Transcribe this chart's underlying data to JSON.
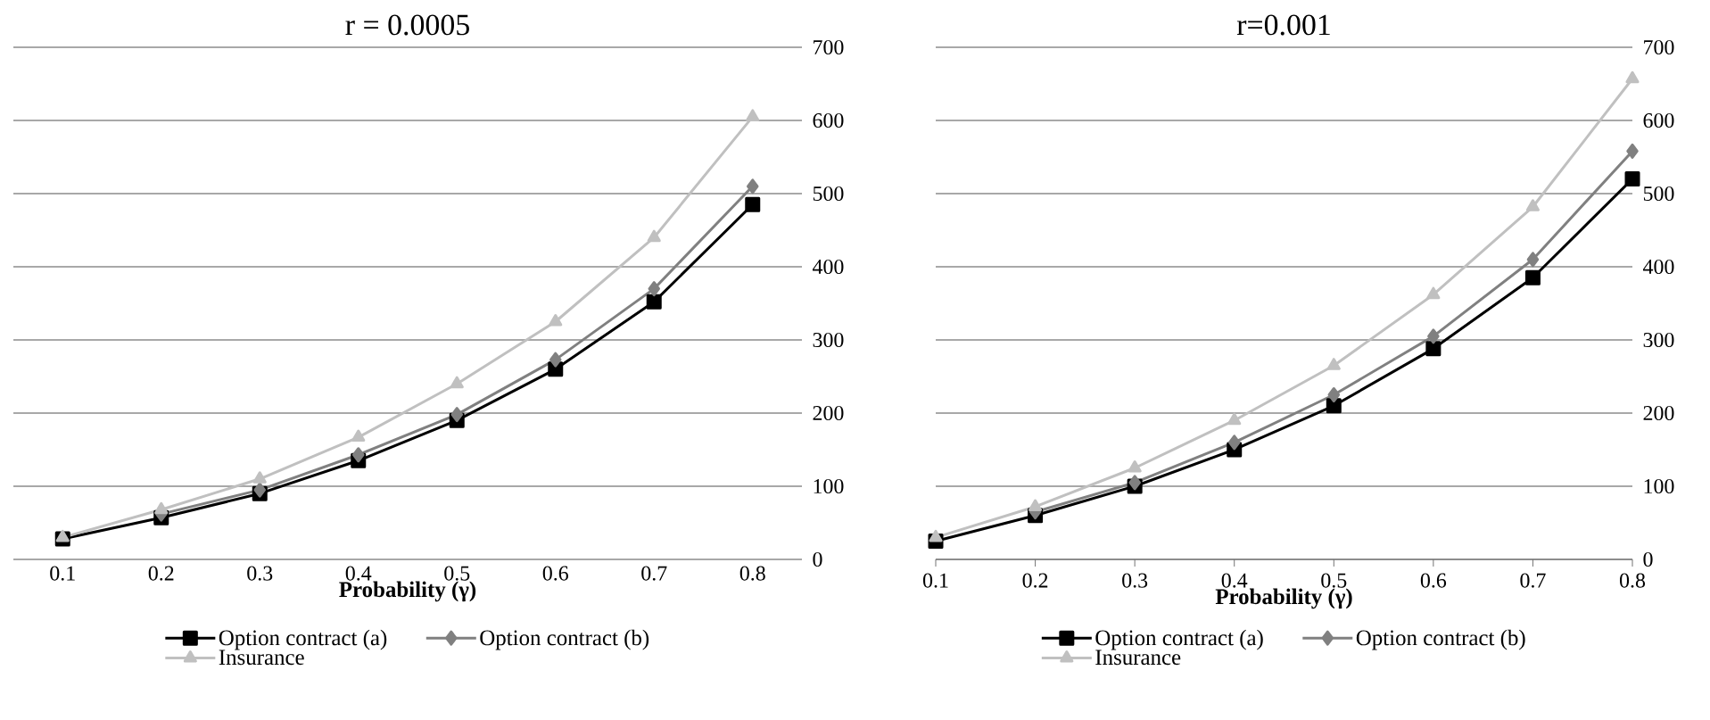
{
  "chart_data": [
    {
      "type": "line",
      "title": "r = 0.0005",
      "xlabel": "Probability (γ)",
      "categories": [
        "0.1",
        "0.2",
        "0.3",
        "0.4",
        "0.5",
        "0.6",
        "0.7",
        "0.8"
      ],
      "ylim": [
        0,
        700
      ],
      "yticks": [
        0,
        100,
        200,
        300,
        400,
        500,
        600,
        700
      ],
      "grid": "y",
      "legend": "bottom",
      "series": [
        {
          "name": "Option contract (a)",
          "color": "#000000",
          "marker": "square",
          "values": [
            28,
            57,
            90,
            135,
            190,
            260,
            352,
            485
          ]
        },
        {
          "name": "Option contract (b)",
          "color": "#808080",
          "marker": "diamond",
          "values": [
            null,
            62,
            95,
            143,
            198,
            273,
            370,
            510
          ]
        },
        {
          "name": "Insurance",
          "color": "#c0c0c0",
          "marker": "triangle",
          "values": [
            30,
            68,
            110,
            167,
            240,
            325,
            440,
            605
          ]
        }
      ]
    },
    {
      "type": "line",
      "title": "r=0.001",
      "xlabel": "Probability (γ)",
      "categories": [
        "0.1",
        "0.2",
        "0.3",
        "0.4",
        "0.5",
        "0.6",
        "0.7",
        "0.8"
      ],
      "ylim": [
        0,
        700
      ],
      "yticks": [
        0,
        100,
        200,
        300,
        400,
        500,
        600,
        700
      ],
      "grid": "y",
      "legend": "bottom",
      "series": [
        {
          "name": "Option contract (a)",
          "color": "#000000",
          "marker": "square",
          "values": [
            25,
            60,
            100,
            150,
            210,
            288,
            385,
            520
          ]
        },
        {
          "name": "Option contract (b)",
          "color": "#808080",
          "marker": "diamond",
          "values": [
            null,
            65,
            105,
            160,
            225,
            305,
            410,
            558
          ]
        },
        {
          "name": "Insurance",
          "color": "#c0c0c0",
          "marker": "triangle",
          "values": [
            30,
            72,
            125,
            190,
            265,
            362,
            482,
            657
          ]
        }
      ]
    }
  ]
}
